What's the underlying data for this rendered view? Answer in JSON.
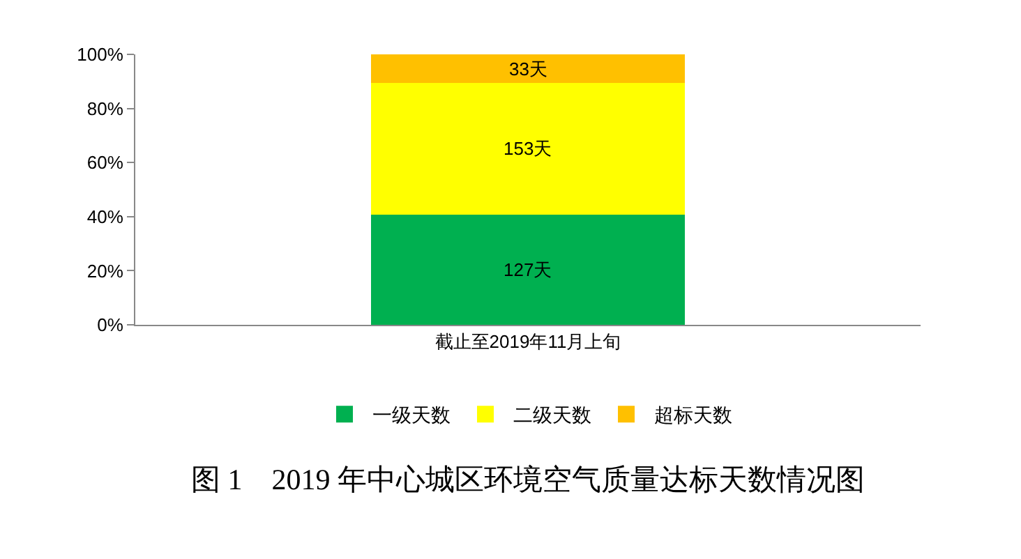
{
  "chart_data": {
    "type": "bar",
    "stacked": true,
    "title": "图 1　2019 年中心城区环境空气质量达标天数情况图",
    "categories": [
      "截止至2019年11月上旬"
    ],
    "series": [
      {
        "name": "一级天数",
        "color": "#00b050",
        "values": [
          40.6
        ]
      },
      {
        "name": "二级天数",
        "color": "#ffff00",
        "values": [
          48.9
        ]
      },
      {
        "name": "超标天数",
        "color": "#ffc000",
        "values": [
          10.5
        ]
      }
    ],
    "annotations": [
      "127天",
      "153天",
      "33天"
    ],
    "ylim": [
      0,
      100
    ],
    "yticks": [
      {
        "value": 0,
        "label": "0%"
      },
      {
        "value": 20,
        "label": "20%"
      },
      {
        "value": 40,
        "label": "40%"
      },
      {
        "value": 60,
        "label": "60%"
      },
      {
        "value": 80,
        "label": "80%"
      },
      {
        "value": 100,
        "label": "100%"
      }
    ],
    "grid": false,
    "legend": "bottom"
  }
}
